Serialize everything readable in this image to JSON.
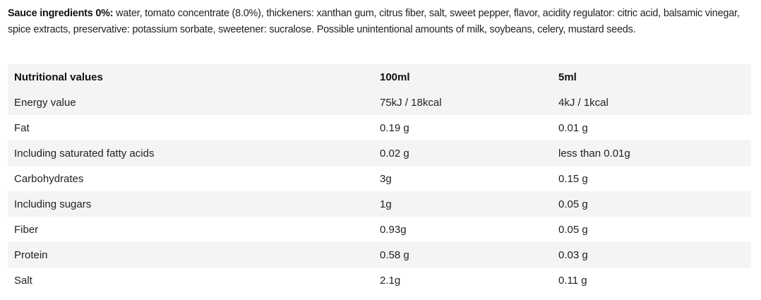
{
  "intro": {
    "label": "Sauce ingredients 0%:",
    "text": "water, tomato concentrate (8.0%), thickeners: xanthan gum, citrus fiber, salt, sweet pepper, flavor, acidity regulator: citric acid, balsamic vinegar, spice extracts, preservative: potassium sorbate, sweetener: sucralose. Possible unintentional amounts of milk, soybeans, celery, mustard seeds."
  },
  "table": {
    "header": [
      "Nutritional values",
      "100ml",
      "5ml"
    ],
    "rows": [
      [
        "Energy value",
        "75kJ / 18kcal",
        "4kJ / 1kcal"
      ],
      [
        "Fat",
        "0.19 g",
        "0.01 g"
      ],
      [
        "Including saturated fatty acids",
        "0.02 g",
        "less than 0.01g"
      ],
      [
        "Carbohydrates",
        "3g",
        "0.15 g"
      ],
      [
        "Including sugars",
        "1g",
        "0.05 g"
      ],
      [
        "Fiber",
        "0.93g",
        "0.05 g"
      ],
      [
        "Protein",
        "0.58 g",
        "0.03 g"
      ],
      [
        "Salt",
        "2.1g",
        "0.11 g"
      ]
    ]
  }
}
